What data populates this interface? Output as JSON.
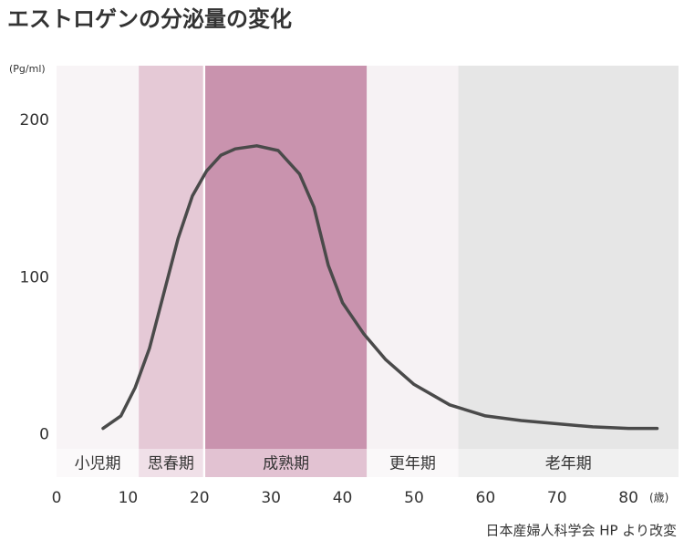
{
  "chart_data": {
    "type": "line",
    "title": "エストロゲンの分泌量の変化",
    "y_unit": "(Pg/ml)",
    "x_unit": "(歳)",
    "source": "日本産婦人科学会 HP より改変",
    "xlim": [
      0,
      87
    ],
    "ylim": [
      -9,
      235
    ],
    "xticks": [
      0,
      10,
      20,
      30,
      40,
      50,
      60,
      70,
      80
    ],
    "yticks": [
      0,
      100,
      200
    ],
    "phases": [
      {
        "name": "小児期",
        "start": 0,
        "end": 11.5,
        "color": "#f8f4f6",
        "label_color": "#fbf9fa"
      },
      {
        "name": "思春期",
        "start": 11.5,
        "end": 20.5,
        "color": "#e5c9d6",
        "label_color": "#f0e0e8"
      },
      {
        "name": "成熟期",
        "start": 20.8,
        "end": 43.4,
        "color": "#c993ae",
        "label_color": "#e2c2d2"
      },
      {
        "name": "更年期",
        "start": 43.4,
        "end": 56.2,
        "color": "#f6f2f4",
        "label_color": "#faf8f9"
      },
      {
        "name": "老年期",
        "start": 56.2,
        "end": 87,
        "color": "#e6e6e6",
        "label_color": "#f0f0f0"
      }
    ],
    "series": [
      {
        "color": "#4a4a4a",
        "x": [
          6.5,
          9,
          11,
          13,
          15,
          17,
          19,
          21,
          23,
          25,
          28,
          31,
          34,
          36,
          38,
          40,
          43,
          46,
          50,
          55,
          60,
          65,
          70,
          75,
          80,
          84
        ],
        "values": [
          4,
          12,
          30,
          55,
          90,
          125,
          152,
          168,
          178,
          182,
          184,
          181,
          166,
          145,
          108,
          84,
          64,
          48,
          32,
          19,
          12,
          9,
          7,
          5,
          4,
          4
        ]
      }
    ]
  }
}
